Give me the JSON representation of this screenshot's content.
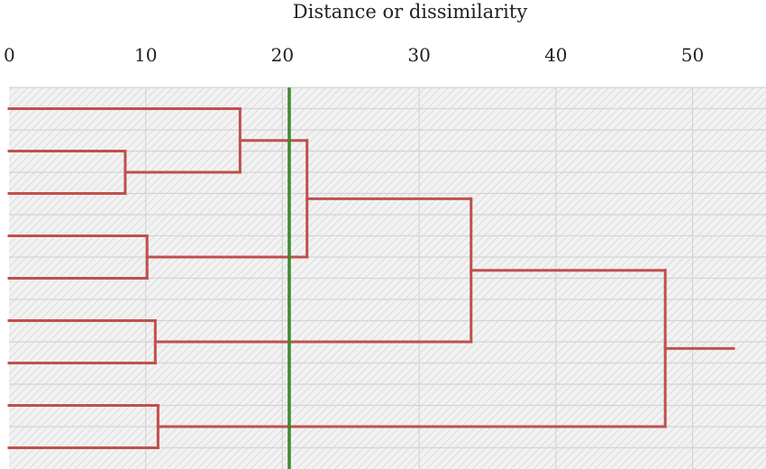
{
  "chart_data": {
    "type": "dendrogram",
    "title": "",
    "xlabel": "Distance or dissimilarity",
    "ylabel": "",
    "xlim": [
      0,
      53.5
    ],
    "x_ticks": [
      0,
      10,
      20,
      30,
      40,
      50
    ],
    "grid": true,
    "leaves": 9,
    "leaf_labels": [],
    "merges": [
      {
        "left": "leaf-2",
        "right": "leaf-3",
        "distance": 8.5
      },
      {
        "left": "leaf-4",
        "right": "leaf-5",
        "distance": 10.1
      },
      {
        "left": "leaf-6",
        "right": "leaf-7",
        "distance": 10.7
      },
      {
        "left": "leaf-8",
        "right": "leaf-9",
        "distance": 10.9
      },
      {
        "left": "leaf-1",
        "right": "cluster-1",
        "distance": 16.9
      },
      {
        "left": "cluster-5",
        "right": "cluster-2",
        "distance": 21.8
      },
      {
        "left": "cluster-6",
        "right": "cluster-3",
        "distance": 33.8
      },
      {
        "left": "cluster-7",
        "right": "cluster-4",
        "distance": 48
      },
      {
        "left": "cluster-8",
        "right": "",
        "distance": 53
      }
    ],
    "cut_line": {
      "distance": 20.5,
      "color": "#3b8a2e"
    },
    "colors": {
      "line": "#c0504d",
      "grid": "#d4d4d4",
      "hatch": "#cfcfcf"
    }
  }
}
